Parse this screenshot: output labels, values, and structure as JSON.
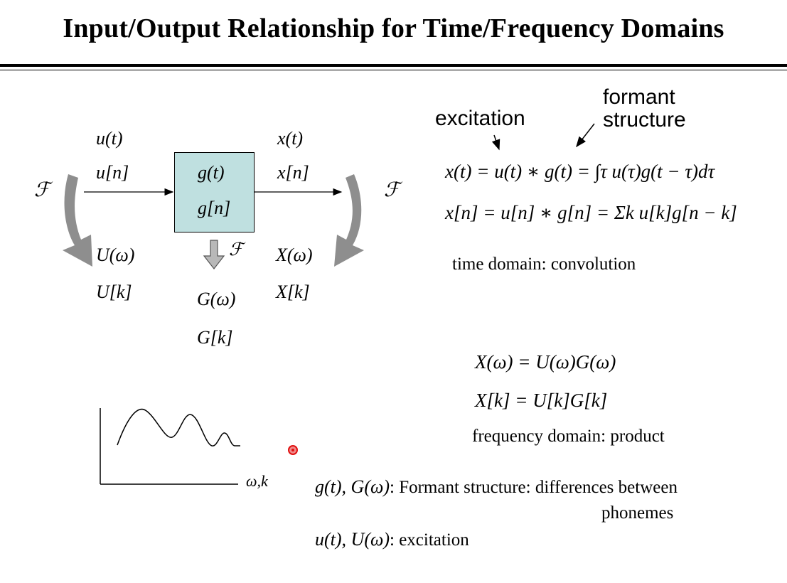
{
  "title": "Input/Output Relationship for Time/Frequency Domains",
  "diagram": {
    "input_time": "u(t)",
    "input_discrete": "u[n]",
    "system_time": "g(t)",
    "system_discrete": "g[n]",
    "output_time": "x(t)",
    "output_discrete": "x[n]",
    "fourier_symbol": "ℱ",
    "input_freq": "U(ω)",
    "input_freq_discrete": "U[k]",
    "system_freq": "G(ω)",
    "system_freq_discrete": "G[k]",
    "output_freq": "X(ω)",
    "output_freq_discrete": "X[k]"
  },
  "annotations": {
    "excitation": "excitation",
    "formant_line1": "formant",
    "formant_line2": "structure"
  },
  "equations": {
    "conv_continuous": "x(t) = u(t) ∗ g(t) = ∫τ u(τ)g(t − τ)dτ",
    "conv_discrete": "x[n] = u[n] ∗ g[n] = Σk u[k]g[n − k]",
    "time_caption": "time domain: convolution",
    "prod_continuous": "X(ω) = U(ω)G(ω)",
    "prod_discrete": "X[k] = U[k]G[k]",
    "freq_caption": "frequency domain: product"
  },
  "plot": {
    "axis_label": "ω,k"
  },
  "notes": {
    "formant_symbols": "g(t), G(ω)",
    "formant_text": ": Formant structure: differences between",
    "formant_text2": "phonemes",
    "excitation_symbols": "u(t), U(ω)",
    "excitation_text": ": excitation"
  }
}
